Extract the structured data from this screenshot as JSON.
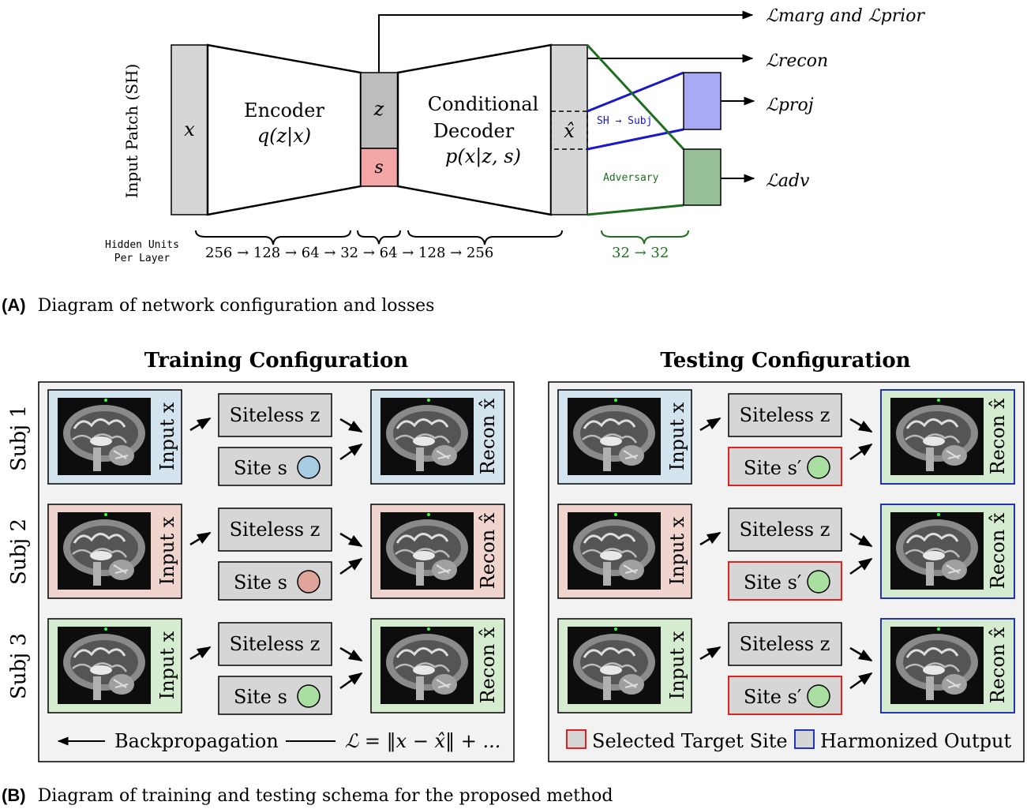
{
  "colors": {
    "gray_block": "#d6d6d6",
    "site_pink": "#f4a6a6",
    "proj_purple": "#a9a9f6",
    "adv_green": "#96bf96",
    "line_blue": "#1919cc",
    "line_green": "#1f6e1f",
    "panel_bg": "#f2f2f2",
    "tile_blue": "#d3e4ee",
    "tile_red": "#efd5cd",
    "tile_green": "#d6ecd0",
    "sel_red": "#dd2222",
    "harm_blue": "#2233bb",
    "circ_blue": "#a7cbe0",
    "circ_red": "#e0a59a",
    "circ_green": "#a9dfa1"
  },
  "part_a": {
    "input_label": "Input Patch (SH)",
    "x_label": "x",
    "encoder_line1": "Encoder",
    "encoder_line2": "q(z|x)",
    "z_label": "z",
    "s_label": "s",
    "decoder_line1": "Conditional",
    "decoder_line2": "Decoder",
    "decoder_line3": "p(x|z, s)",
    "xhat_label": "x̂",
    "sh_subj_label": "SH → Subj",
    "adversary_label": "Adversary",
    "loss_marg": "ℒmarg and ℒprior",
    "loss_recon": "ℒrecon",
    "loss_proj": "ℒproj",
    "loss_adv": "ℒadv",
    "hidden_units_line1": "Hidden Units",
    "hidden_units_line2": "Per Layer",
    "units_main": "256 → 128 → 64 → 32 → 64 → 128 → 256",
    "units_adv": "32 → 32",
    "caption_tag": "(A)",
    "caption_text": "Diagram of network configuration and losses"
  },
  "part_b": {
    "training_title": "Training Configuration",
    "testing_title": "Testing Configuration",
    "subjects": [
      "Subj 1",
      "Subj 2",
      "Subj 3"
    ],
    "input_label": "Input x",
    "recon_label": "Recon x̂",
    "siteless_label": "Siteless z",
    "site_label": "Site s",
    "site_prime_label": "Site s′",
    "backprop_label": "Backpropagation",
    "loss_formula": "ℒ = ‖x − x̂‖ + ...",
    "legend_selected": "Selected Target Site",
    "legend_harmonized": "Harmonized Output",
    "caption_tag": "(B)",
    "caption_text": "Diagram of training and testing schema for the proposed method"
  }
}
